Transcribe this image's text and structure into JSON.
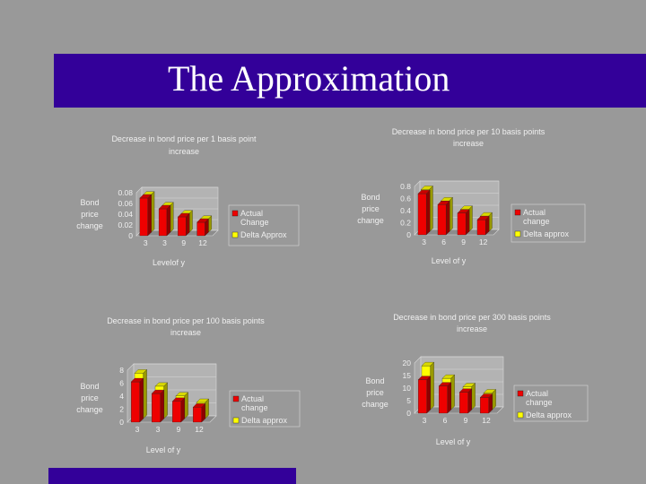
{
  "slide": {
    "title": "The Approximation",
    "colors": {
      "banner": "#330099",
      "background": "#999999",
      "actual": "#ee0000",
      "delta": "#ffff00"
    }
  },
  "chart_data": [
    {
      "type": "bar",
      "title": "Decrease in bond price per 1 basis point increase",
      "xlabel": "Levelof y",
      "ylabel": "Bond price change",
      "categories": [
        "3",
        "3",
        "9",
        "12"
      ],
      "yticks": [
        "0",
        "0.02",
        "0.04",
        "0.06",
        "0.08"
      ],
      "ylim": [
        0,
        0.08
      ],
      "legend_position": "right",
      "series": [
        {
          "name": "Actual Change",
          "color": "#ee0000",
          "values": [
            0.07,
            0.05,
            0.035,
            0.025
          ]
        },
        {
          "name": "Delta Approx",
          "color": "#ffff00",
          "values": [
            0.07,
            0.05,
            0.035,
            0.025
          ]
        }
      ]
    },
    {
      "type": "bar",
      "title": "Decrease in bond price per 10 basis points increase",
      "xlabel": "Level of y",
      "ylabel": "Bond price change",
      "categories": [
        "3",
        "6",
        "9",
        "12"
      ],
      "yticks": [
        "0",
        "0.2",
        "0.4",
        "0.6",
        "0.8"
      ],
      "ylim": [
        0,
        0.8
      ],
      "legend_position": "right",
      "series": [
        {
          "name": "Actual change",
          "color": "#ee0000",
          "values": [
            0.68,
            0.5,
            0.36,
            0.25
          ]
        },
        {
          "name": "Delta approx",
          "color": "#ffff00",
          "values": [
            0.7,
            0.51,
            0.37,
            0.26
          ]
        }
      ]
    },
    {
      "type": "bar",
      "title": "Decrease in bond price per 100 basis points increase",
      "xlabel": "Level of y",
      "ylabel": "Bond price change",
      "categories": [
        "3",
        "3",
        "9",
        "12"
      ],
      "yticks": [
        "0",
        "2",
        "4",
        "6",
        "8"
      ],
      "ylim": [
        0,
        8
      ],
      "legend_position": "right",
      "series": [
        {
          "name": "Actual change",
          "color": "#ee0000",
          "values": [
            6.2,
            4.4,
            3.2,
            2.3
          ]
        },
        {
          "name": "Delta approx",
          "color": "#ffff00",
          "values": [
            7.0,
            5.0,
            3.5,
            2.5
          ]
        }
      ]
    },
    {
      "type": "bar",
      "title": "Decrease in bond price per 300 basis points increase",
      "xlabel": "Level of y",
      "ylabel": "Bond price change",
      "categories": [
        "3",
        "6",
        "9",
        "12"
      ],
      "yticks": [
        "0",
        "5",
        "10",
        "15",
        "20"
      ],
      "ylim": [
        0,
        24
      ],
      "legend_position": "right",
      "series": [
        {
          "name": "Actual change",
          "color": "#ee0000",
          "values": [
            16,
            13,
            10,
            7.5
          ]
        },
        {
          "name": "Delta approx",
          "color": "#ffff00",
          "values": [
            21,
            15,
            11,
            8
          ]
        }
      ]
    }
  ]
}
